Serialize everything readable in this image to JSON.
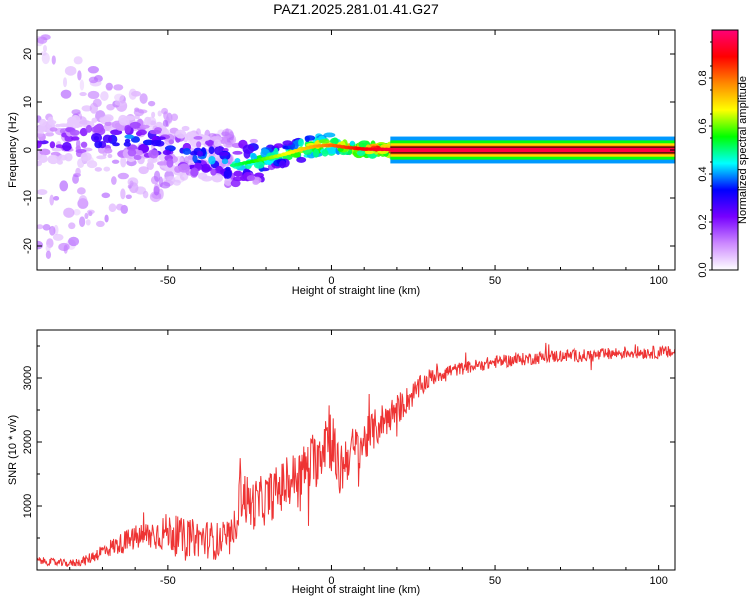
{
  "figure": {
    "title": "PAZ1.2025.281.01.41.G27"
  },
  "chart_data": [
    {
      "type": "heatmap",
      "title": "PAZ1.2025.281.01.41.G27",
      "xlabel": "Height of straight line (km)",
      "ylabel": "Frequency (Hz)",
      "xlim": [
        -90,
        105
      ],
      "ylim": [
        -25,
        25
      ],
      "xticks": [
        -50,
        0,
        50,
        100
      ],
      "yticks": [
        -20,
        -10,
        0,
        10,
        20
      ],
      "xtick_labels": [
        "-50",
        "0",
        "50",
        "100"
      ],
      "ytick_labels": [
        "-20",
        "-10",
        "0",
        "10",
        "20"
      ],
      "colorbar": {
        "label": "Normalized spectral amplitude",
        "range": [
          0.0,
          1.0
        ],
        "ticks": [
          0.0,
          0.2,
          0.4,
          0.6,
          0.8
        ],
        "tick_labels": [
          "0.0",
          "0.2",
          "0.4",
          "0.6",
          "0.8"
        ],
        "colormap": [
          "#ffffff",
          "#cc88ff",
          "#7700ff",
          "#0000ff",
          "#00ffff",
          "#00ff00",
          "#ffff00",
          "#ff8800",
          "#ff0000",
          "#ff0077"
        ]
      },
      "ridge": {
        "x": [
          -90,
          -80,
          -70,
          -60,
          -50,
          -45,
          -40,
          -35,
          -30,
          -25,
          -20,
          -15,
          -10,
          -5,
          0,
          5,
          10,
          20,
          30,
          50,
          80,
          105
        ],
        "frequency": [
          1.5,
          2.0,
          2.2,
          2.5,
          0.5,
          -1.0,
          -1.5,
          -2.0,
          -3.2,
          -2.5,
          -1.8,
          -1.0,
          0.0,
          0.8,
          1.0,
          0.5,
          0.2,
          0.1,
          0.1,
          0.0,
          0.0,
          0.0
        ],
        "amplitude": [
          0.3,
          0.35,
          0.4,
          0.45,
          0.4,
          0.42,
          0.45,
          0.45,
          0.5,
          0.55,
          0.6,
          0.65,
          0.7,
          0.75,
          0.8,
          0.85,
          0.9,
          0.95,
          0.97,
          0.98,
          0.98,
          0.98
        ]
      }
    },
    {
      "type": "line",
      "xlabel": "Height of straight line (km)",
      "ylabel": "SNR (10 * v/v)",
      "xlim": [
        -90,
        105
      ],
      "ylim": [
        0,
        3750
      ],
      "xticks": [
        -50,
        0,
        50,
        100
      ],
      "yticks": [
        1000,
        2000,
        3000
      ],
      "xtick_labels": [
        "-50",
        "0",
        "50",
        "100"
      ],
      "ytick_labels": [
        "1000",
        "2000",
        "3000"
      ],
      "series": [
        {
          "name": "SNR",
          "color": "#ee3333",
          "x": [
            -90,
            -85,
            -80,
            -75,
            -70,
            -65,
            -60,
            -55,
            -50,
            -45,
            -40,
            -35,
            -30,
            -28,
            -25,
            -20,
            -15,
            -10,
            -5,
            -1,
            0,
            2,
            5,
            10,
            15,
            20,
            25,
            30,
            35,
            40,
            50,
            60,
            70,
            80,
            90,
            100,
            105
          ],
          "y": [
            150,
            120,
            100,
            150,
            300,
            400,
            500,
            550,
            600,
            500,
            500,
            450,
            500,
            1300,
            1000,
            1100,
            1300,
            1500,
            1700,
            2200,
            2100,
            1500,
            1800,
            2000,
            2300,
            2500,
            2750,
            3000,
            3100,
            3150,
            3250,
            3300,
            3350,
            3350,
            3400,
            3400,
            3400
          ],
          "noise": [
            60,
            60,
            60,
            80,
            120,
            160,
            200,
            250,
            300,
            300,
            300,
            300,
            300,
            500,
            400,
            400,
            400,
            400,
            450,
            600,
            600,
            500,
            400,
            350,
            300,
            250,
            200,
            150,
            120,
            100,
            100,
            100,
            100,
            100,
            100,
            100,
            100
          ]
        }
      ]
    }
  ]
}
